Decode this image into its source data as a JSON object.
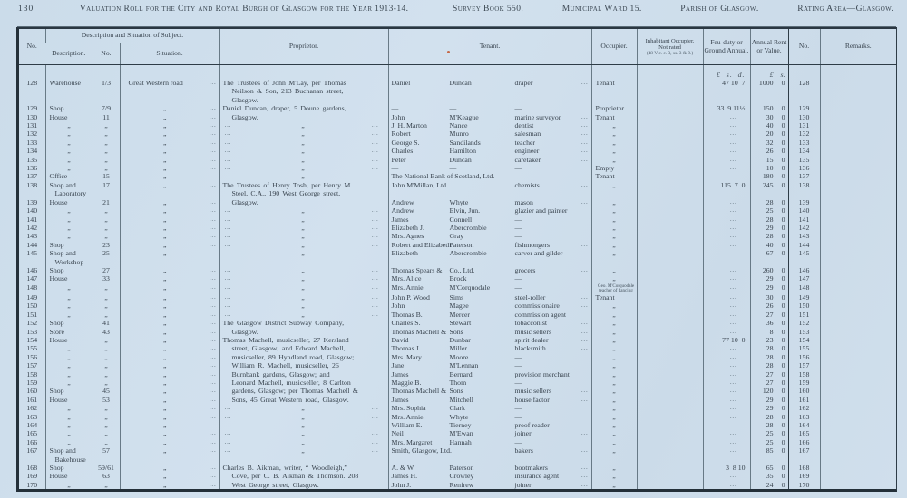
{
  "page": {
    "number": "130",
    "title": "Valuation Roll for the City and Royal Burgh of Glasgow for the Year 1913-14.",
    "survey_book": "Survey Book 550.",
    "ward": "Municipal Ward 15.",
    "parish": "Parish of Glasgow.",
    "rating_area": "Rating Area—Glasgow."
  },
  "table": {
    "ditto_mark": "„",
    "leader_dots": "...",
    "headers": {
      "no": "No.",
      "group": "Description and Situation of Subject.",
      "description": "Description.",
      "num": "No.",
      "situation": "Situation.",
      "proprietor": "Proprietor.",
      "tenant": "Tenant.",
      "occupier": "Occupier.",
      "inhabitant": "Inhabitant Occupier.",
      "inhabitant_sub": "Not rated",
      "inhabitant_ref": "(48 Vic. c. 3, ss. 3 & 9.)",
      "feu": "Feu-duty or Ground Annual.",
      "rent": "Annual Rent or Value.",
      "no2": "No.",
      "remarks": "Remarks.",
      "feu_units": "£  s.  d.",
      "rent_units_pound": "£",
      "rent_units_s": "s."
    },
    "rows": [
      {
        "no": "128",
        "d": "Warehouse",
        "n": "1/3",
        "s": "Great Western road",
        "p": [
          "The Trustees of John M'Lay, per Thomas",
          "~Neilson & Son, 213 Buchanan street,",
          "~Glasgow."
        ],
        "t1": "Daniel",
        "t2": "Duncan",
        "t3": "draper",
        "td": 1,
        "occ": "Tenant",
        "feu": "47 10  7",
        "r1": "1000",
        "r2": "0"
      },
      {
        "no": "129",
        "d": "Shop",
        "n": "7/9",
        "s": "„",
        "p": [
          "Daniel Duncan, draper, 5 Doune gardens,"
        ],
        "t1": "—",
        "t2": "—",
        "t3": "—",
        "td": 0,
        "occ": "Proprietor",
        "feu": "33  9 11½",
        "r1": "150",
        "r2": "0"
      },
      {
        "no": "130",
        "d": "House",
        "n": "11",
        "s": "„",
        "p": [
          "~Glasgow."
        ],
        "t1": "John",
        "t2": "M'Keague",
        "t3": "marine surveyor",
        "td": 1,
        "occ": "Tenant",
        "feu": "...",
        "r1": "30",
        "r2": "0"
      },
      {
        "no": "131",
        "d": "„",
        "n": "„",
        "s": "„",
        "p": "D",
        "t1": "J. H. Marton",
        "t2": "Nance",
        "t3": "dentist",
        "td": 1,
        "occ": "„",
        "feu": "...",
        "r1": "40",
        "r2": "0"
      },
      {
        "no": "132",
        "d": "„",
        "n": "„",
        "s": "„",
        "p": "D",
        "t1": "Robert",
        "t2": "Munro",
        "t3": "salesman",
        "td": 1,
        "occ": "„",
        "feu": "...",
        "r1": "20",
        "r2": "0"
      },
      {
        "no": "133",
        "d": "„",
        "n": "„",
        "s": "„",
        "p": "D",
        "t1": "George S.",
        "t2": "Sandilands",
        "t3": "teacher",
        "td": 1,
        "occ": "„",
        "feu": "...",
        "r1": "32",
        "r2": "0"
      },
      {
        "no": "134",
        "d": "„",
        "n": "„",
        "s": "„",
        "p": "D",
        "t1": "Charles",
        "t2": "Hamilton",
        "t3": "engineer",
        "td": 1,
        "occ": "„",
        "feu": "...",
        "r1": "26",
        "r2": "0"
      },
      {
        "no": "135",
        "d": "„",
        "n": "„",
        "s": "„",
        "p": "D",
        "t1": "Peter",
        "t2": "Duncan",
        "t3": "caretaker",
        "td": 1,
        "occ": "„",
        "feu": "...",
        "r1": "15",
        "r2": "0"
      },
      {
        "no": "136",
        "d": "„",
        "n": "„",
        "s": "„",
        "p": "D",
        "t1": "—",
        "t2": "—",
        "t3": "—",
        "td": 0,
        "occ": "Empty",
        "feu": "...",
        "r1": "10",
        "r2": "0"
      },
      {
        "no": "137",
        "d": "Office",
        "n": "15",
        "s": "„",
        "p": "D",
        "t1": "The National Bank of Scotland, Ltd.",
        "t2": "",
        "t3": "—",
        "td": 0,
        "occ": "Tenant",
        "feu": "...",
        "r1": "180",
        "r2": "0"
      },
      {
        "no": "138",
        "d": [
          "Shop and",
          "Laboratory"
        ],
        "n": "17",
        "s": "„",
        "p": [
          "The Trustees of Henry Tosh, per Henry M.",
          "~Steel, C.A., 190 West George street,"
        ],
        "t1": "John M'Millan, Ltd.",
        "t2": "",
        "t3": "chemists",
        "td": 1,
        "occ": "„",
        "feu": "115  7  0",
        "r1": "245",
        "r2": "0"
      },
      {
        "no": "139",
        "d": "House",
        "n": "21",
        "s": "„",
        "p": [
          "~Glasgow."
        ],
        "t1": "Andrew",
        "t2": "Whyte",
        "t3": "mason",
        "td": 1,
        "occ": "„",
        "feu": "...",
        "r1": "28",
        "r2": "0"
      },
      {
        "no": "140",
        "d": "„",
        "n": "„",
        "s": "„",
        "p": "D",
        "t1": "Andrew",
        "t2": "Elvin, Jun.",
        "t3": "glazier and painter",
        "td": 0,
        "occ": "„",
        "feu": "...",
        "r1": "25",
        "r2": "0"
      },
      {
        "no": "141",
        "d": "„",
        "n": "„",
        "s": "„",
        "p": "D",
        "t1": "James",
        "t2": "Connell",
        "t3": "—",
        "td": 0,
        "occ": "„",
        "feu": "...",
        "r1": "28",
        "r2": "0"
      },
      {
        "no": "142",
        "d": "„",
        "n": "„",
        "s": "„",
        "p": "D",
        "t1": "Elizabeth J.",
        "t2": "Abercrombie",
        "t3": "—",
        "td": 0,
        "occ": "„",
        "feu": "...",
        "r1": "29",
        "r2": "0"
      },
      {
        "no": "143",
        "d": "„",
        "n": "„",
        "s": "„",
        "p": "D",
        "t1": "Mrs. Agnes",
        "t2": "Gray",
        "t3": "—",
        "td": 0,
        "occ": "„",
        "feu": "...",
        "r1": "28",
        "r2": "0"
      },
      {
        "no": "144",
        "d": "Shop",
        "n": "23",
        "s": "„",
        "p": "D",
        "t1": "Robert and Elizabeth",
        "t2": "Paterson",
        "t3": "fishmongers",
        "td": 1,
        "occ": "„",
        "feu": "...",
        "r1": "40",
        "r2": "0"
      },
      {
        "no": "145",
        "d": [
          "Shop and",
          "Workshop"
        ],
        "n": "25",
        "s": "„",
        "p": "D",
        "t1": "Elizabeth",
        "t2": "Abercrombie",
        "t3": "carver and gilder",
        "td": 0,
        "occ": "„",
        "feu": "...",
        "r1": "67",
        "r2": "0"
      },
      {
        "no": "146",
        "d": "Shop",
        "n": "27",
        "s": "„",
        "p": "D",
        "t1": "Thomas Spears &",
        "t2": "Co., Ltd.",
        "t3": "grocers",
        "td": 1,
        "occ": "„",
        "feu": "...",
        "r1": "260",
        "r2": "0"
      },
      {
        "no": "147",
        "d": "House",
        "n": "33",
        "s": "„",
        "p": "D",
        "t1": "Mrs. Alice",
        "t2": "Brock",
        "t3": "—",
        "td": 0,
        "occ": "„",
        "feu": "...",
        "r1": "29",
        "r2": "0"
      },
      {
        "no": "148",
        "d": "„",
        "n": "„",
        "s": "„",
        "p": "D",
        "t1": "Mrs. Annie",
        "t2": "M'Corquodale",
        "t3": "—",
        "td": 0,
        "occ": "",
        "occ_note": [
          "Geo. M'Corquodale",
          "teacher of dancing"
        ],
        "feu": "...",
        "r1": "29",
        "r2": "0"
      },
      {
        "no": "149",
        "d": "„",
        "n": "„",
        "s": "„",
        "p": "D",
        "t1": "John P. Wood",
        "t2": "Sims",
        "t3": "steel-roller",
        "td": 1,
        "occ": "Tenant",
        "feu": "...",
        "r1": "30",
        "r2": "0"
      },
      {
        "no": "150",
        "d": "„",
        "n": "„",
        "s": "„",
        "p": "D",
        "t1": "John",
        "t2": "Magee",
        "t3": "commissionaire",
        "td": 1,
        "occ": "„",
        "feu": "...",
        "r1": "26",
        "r2": "0"
      },
      {
        "no": "151",
        "d": "„",
        "n": "„",
        "s": "„",
        "p": "D",
        "t1": "Thomas B.",
        "t2": "Mercer",
        "t3": "commission agent",
        "td": 0,
        "occ": "„",
        "feu": "...",
        "r1": "27",
        "r2": "0"
      },
      {
        "no": "152",
        "d": "Shop",
        "n": "41",
        "s": "„",
        "p": [
          "The Glasgow District Subway Company,"
        ],
        "t1": "Charles S.",
        "t2": "Stewart",
        "t3": "tobacconist",
        "td": 1,
        "occ": "„",
        "feu": "...",
        "r1": "36",
        "r2": "0"
      },
      {
        "no": "153",
        "d": "Store",
        "n": "43",
        "s": "„",
        "p": [
          "~Glasgow."
        ],
        "t1": "Thomas Machell &",
        "t2": "Sons",
        "t3": "music sellers",
        "td": 1,
        "occ": "„",
        "feu": "...",
        "r1": "8",
        "r2": "0"
      },
      {
        "no": "154",
        "d": "House",
        "n": "„",
        "s": "„",
        "p": [
          "Thomas Machell, musicseller, 27 Kersland"
        ],
        "t1": "David",
        "t2": "Dunbar",
        "t3": "spirit dealer",
        "td": 1,
        "occ": "„",
        "feu": "77 10  0",
        "r1": "23",
        "r2": "0"
      },
      {
        "no": "155",
        "d": "„",
        "n": "„",
        "s": "„",
        "p": [
          "~street, Glasgow; and Edward Machell,"
        ],
        "t1": "Thomas J.",
        "t2": "Miller",
        "t3": "blacksmith",
        "td": 1,
        "occ": "„",
        "feu": "...",
        "r1": "28",
        "r2": "0"
      },
      {
        "no": "156",
        "d": "„",
        "n": "„",
        "s": "„",
        "p": [
          "~musicseller, 89 Hyndland road, Glasgow;"
        ],
        "t1": "Mrs. Mary",
        "t2": "Moore",
        "t3": "—",
        "td": 0,
        "occ": "„",
        "feu": "...",
        "r1": "28",
        "r2": "0"
      },
      {
        "no": "157",
        "d": "„",
        "n": "„",
        "s": "„",
        "p": [
          "~William R. Machell, musicseller, 26"
        ],
        "t1": "Jane",
        "t2": "M'Lennan",
        "t3": "—",
        "td": 0,
        "occ": "„",
        "feu": "...",
        "r1": "28",
        "r2": "0"
      },
      {
        "no": "158",
        "d": "„",
        "n": "„",
        "s": "„",
        "p": [
          "~Burnbank gardens, Glasgow; and"
        ],
        "t1": "James",
        "t2": "Bernard",
        "t3": "provision merchant",
        "td": 0,
        "occ": "„",
        "feu": "...",
        "r1": "27",
        "r2": "0"
      },
      {
        "no": "159",
        "d": "„",
        "n": "„",
        "s": "„",
        "p": [
          "~Leonard Machell, musicseller, 8 Carlton"
        ],
        "t1": "Maggie B.",
        "t2": "Thom",
        "t3": "—",
        "td": 0,
        "occ": "„",
        "feu": "...",
        "r1": "27",
        "r2": "0"
      },
      {
        "no": "160",
        "d": "Shop",
        "n": "45",
        "s": "„",
        "p": [
          "~gardens, Glasgow; per Thomas Machell &"
        ],
        "t1": "Thomas Machell &",
        "t2": "Sons",
        "t3": "music sellers",
        "td": 1,
        "occ": "„",
        "feu": "...",
        "r1": "120",
        "r2": "0"
      },
      {
        "no": "161",
        "d": "House",
        "n": "53",
        "s": "„",
        "p": [
          "~Sons, 45 Great Western road, Glasgow."
        ],
        "t1": "James",
        "t2": "Mitchell",
        "t3": "house factor",
        "td": 1,
        "occ": "„",
        "feu": "...",
        "r1": "29",
        "r2": "0"
      },
      {
        "no": "162",
        "d": "„",
        "n": "„",
        "s": "„",
        "p": "D",
        "t1": "Mrs. Sophia",
        "t2": "Clark",
        "t3": "—",
        "td": 0,
        "occ": "„",
        "feu": "...",
        "r1": "29",
        "r2": "0"
      },
      {
        "no": "163",
        "d": "„",
        "n": "„",
        "s": "„",
        "p": "D",
        "t1": "Mrs. Annie",
        "t2": "Whyte",
        "t3": "—",
        "td": 0,
        "occ": "„",
        "feu": "...",
        "r1": "28",
        "r2": "0"
      },
      {
        "no": "164",
        "d": "„",
        "n": "„",
        "s": "„",
        "p": "D",
        "t1": "William E.",
        "t2": "Tierney",
        "t3": "proof reader",
        "td": 1,
        "occ": "„",
        "feu": "...",
        "r1": "28",
        "r2": "0"
      },
      {
        "no": "165",
        "d": "„",
        "n": "„",
        "s": "„",
        "p": "D",
        "t1": "Neil",
        "t2": "M'Ewan",
        "t3": "joiner",
        "td": 1,
        "occ": "„",
        "feu": "...",
        "r1": "25",
        "r2": "0"
      },
      {
        "no": "166",
        "d": "„",
        "n": "„",
        "s": "„",
        "p": "D",
        "t1": "Mrs. Margaret",
        "t2": "Hannah",
        "t3": "—",
        "td": 0,
        "occ": "„",
        "feu": "...",
        "r1": "25",
        "r2": "0"
      },
      {
        "no": "167",
        "d": [
          "Shop and",
          "Bakehouse"
        ],
        "n": "57",
        "s": "„",
        "p": "D",
        "t1": "Smith, Glasgow, Ltd.",
        "t2": "",
        "t3": "bakers",
        "td": 1,
        "occ": "„",
        "feu": "...",
        "r1": "85",
        "r2": "0"
      },
      {
        "no": "168",
        "d": "Shop",
        "n": "59/61",
        "s": "„",
        "p": [
          "Charles B. Aikman, writer, “ Woodleigh,”"
        ],
        "t1": "A. & W.",
        "t2": "Paterson",
        "t3": "bootmakers",
        "td": 1,
        "occ": "„",
        "feu": "3  8 10",
        "r1": "65",
        "r2": "0"
      },
      {
        "no": "169",
        "d": "House",
        "n": "63",
        "s": "„",
        "p": [
          "~Cove, per C. B. Aikman & Thomson. 208"
        ],
        "t1": "James H.",
        "t2": "Crowley",
        "t3": "insurance agent",
        "td": 1,
        "occ": "„",
        "feu": "...",
        "r1": "35",
        "r2": "0"
      },
      {
        "no": "170",
        "d": "„",
        "n": "„",
        "s": "„",
        "p": [
          "~West George street, Glasgow."
        ],
        "t1": "John J.",
        "t2": "Renfrew",
        "t3": "joiner",
        "td": 1,
        "occ": "„",
        "feu": "...",
        "r1": "24",
        "r2": "0"
      }
    ]
  },
  "colors": {
    "paper": "#cfdfec",
    "ink": "#38434e",
    "rule": "#5c6d79",
    "rule_dark": "#2e3c47",
    "ink_speck": "#c4542a"
  }
}
